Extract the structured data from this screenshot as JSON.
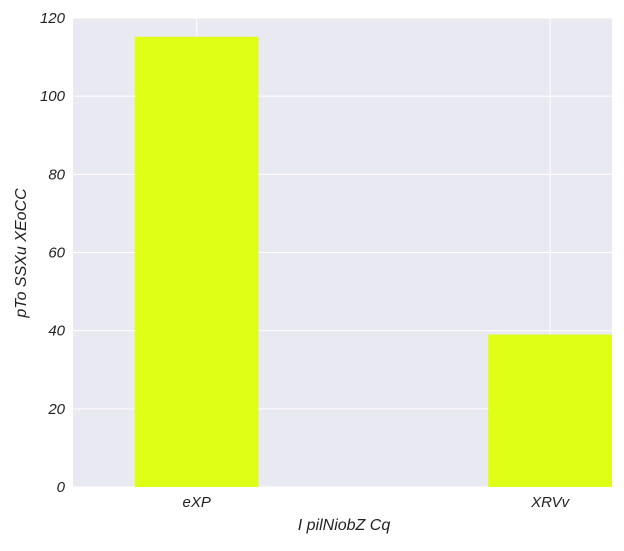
{
  "chart_data": {
    "type": "bar",
    "categories": [
      "eXP",
      "XRVv"
    ],
    "values": [
      115.2,
      39.0
    ],
    "xlabel": "I pilNiobZ Cq",
    "ylabel": "pTo SSXu XEoCC",
    "ylim": [
      0,
      120
    ],
    "yticks": [
      "0",
      "20",
      "40",
      "60",
      "80",
      "100",
      "120"
    ],
    "grid": true,
    "bar_color": "#dfff17",
    "plot_background": "#e9e9f1",
    "grid_color": "#ffffff"
  }
}
